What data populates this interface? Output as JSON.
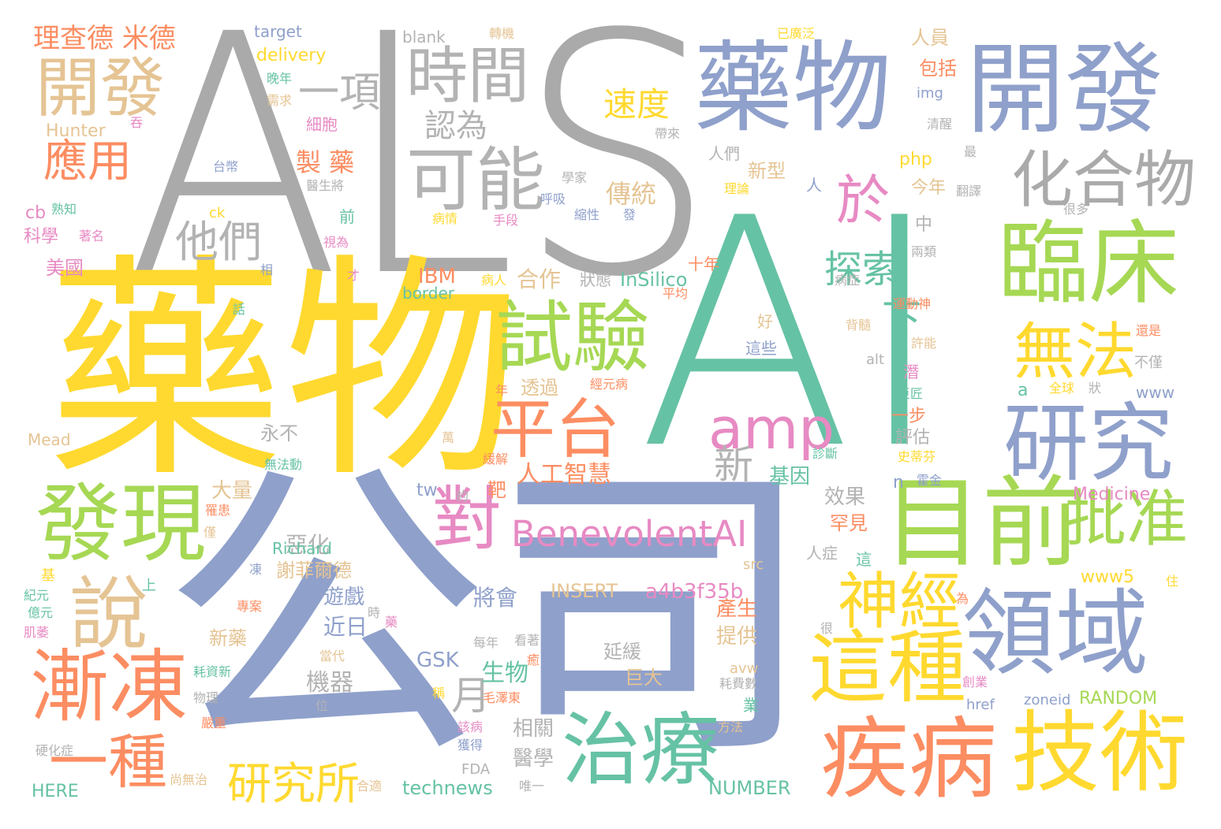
{
  "palette": {
    "gray": "#aaaaaa",
    "blue": "#8fa0cb",
    "teal": "#66c2a5",
    "yellow": "#ffd92f",
    "green": "#a6d854",
    "orange": "#fc8d62",
    "tan": "#e5c494",
    "pink": "#e78ac3",
    "lightgray": "#b3b3b3"
  },
  "words": {
    "als": "ALS",
    "ai": "AI",
    "yaowu_big": "藥物",
    "gongsi": "公司",
    "yaowu_top": "藥物",
    "kaifa_top": "開發",
    "linchuang": "臨床",
    "mubian": "目前",
    "lingyu": "領域",
    "jishu": "技術",
    "jibing": "疾病",
    "zhiliao": "治療",
    "yanjiu": "研究",
    "huahewu": "化合物",
    "shiyan": "試驗",
    "pingtai": "平台",
    "faxian": "發現",
    "jiandong": "漸凍",
    "shuo": "說",
    "kaifa_left": "開發",
    "shijian": "時間",
    "keneng": "可能",
    "zhezhong": "這種",
    "shenjing": "神經",
    "wufa": "無法",
    "pizhun": "批准",
    "dui": "對",
    "amp": "amp",
    "benevolent": "BenevolentAI",
    "yizhong": "一種",
    "yanjiusuo": "研究所",
    "yu": "於",
    "tansuo": "探索",
    "xia": "下",
    "yixiang": "一項",
    "renwei": "認為",
    "tamen": "他們",
    "yingyong": "應用",
    "richard_mead": "理查德 米德",
    "sudu": "速度",
    "xin": "新",
    "yue": "月",
    "zhiyao": "製 藥",
    "chuantong": "傳統",
    "rengong": "人工智慧",
    "insilico": "InSilico",
    "hezuo": "合作",
    "ibm": "IBM",
    "jiyin": "基因",
    "jiqi": "機器",
    "shengwu": "生物",
    "xiangguan": "相關",
    "yixue": "醫學",
    "gsk": "GSK",
    "jinri": "近日",
    "youxi": "遊戲",
    "jianghui": "將會",
    "xieleide": "謝菲爾德",
    "ehua": "惡化",
    "daliang": "大量",
    "yongbu": "永不",
    "touguo": "透過",
    "ba": "靶",
    "xinyao": "新藥",
    "a4b3": "a4b3f35b",
    "insert": "INSERT",
    "yanhuan": "延緩",
    "juda": "巨大",
    "chansheng": "產生",
    "tigong": "提供",
    "medicine": "Medicine",
    "www5": "www5",
    "xiaoguo": "效果",
    "hanjian": "罕見",
    "number": "NUMBER",
    "technews": "technews",
    "random": "RANDOM",
    "delivery": "delivery",
    "target": "target",
    "blank": "blank",
    "hunter": "Hunter",
    "php": "php",
    "jinnian": "今年",
    "xinxing": "新型",
    "renmen": "人們",
    "renyuan": "人員",
    "baokuo": "包括",
    "meiguo": "美國",
    "kexue": "科學",
    "cb": "cb",
    "border": "border",
    "richard": "Richard",
    "mead": "Mead",
    "here": "HERE",
    "tw": "tw",
    "yibu": "一步",
    "pinggu": "評估",
    "www": "www",
    "a": "a",
    "alt": "alt",
    "img": "img",
    "zoneid": "zoneid",
    "href": "href",
    "avw": "avw",
    "fda": "FDA",
    "src": "src",
    "n": "n",
    "ck": "ck",
    "zhuangtai": "狀態",
    "shinian": "十年",
    "hao": "好",
    "zhexie": "這些",
    "qian": "前",
    "ren": "人",
    "zhong": "中",
    "yuanlai": "已廣泛",
    "zhuanji": "轉機",
    "wannian": "晚年",
    "xuqiu": "需求",
    "xibao": "細胞",
    "taiyin": "台幣",
    "yishengjiang": "醫生將",
    "shuzhi": "熟知",
    "zhuming": "著名",
    "shiwei": "視為",
    "cai": "才",
    "xiang": "相",
    "hua": "話",
    "jiyuan": "紀元",
    "jiqiu": "基",
    "shang": "上",
    "dong": "凍",
    "zhuanan": "專案",
    "shi": "時",
    "huan": "藥",
    "jirou": "肌萎",
    "dangdai": "當代",
    "haozi": "耗資新",
    "wuli": "物理",
    "yanzhong": "嚴重",
    "wei": "位",
    "zhidao": "直到",
    "yinghua": "硬化症",
    "shangwu": "尚無治",
    "heshi": "合適",
    "weiyi": "唯一",
    "huode": "獲得",
    "gaibing": "該病",
    "cheng": "稱",
    "maozedong": "毛澤東",
    "kanzhe": "看著",
    "meinian": "每年",
    "fang": "癒",
    "haofei": "耗費數",
    "ye": "業",
    "fangfa": "方法",
    "huoqin": "霍金",
    "shidifen": "史蒂芬",
    "zhenduan": "診斷",
    "jujiang": "巨匠",
    "qian2": "潛",
    "jinneng": "許能",
    "beisui": "背髓",
    "yundong": "運動神",
    "bingzheng": "病症",
    "liangjia": "兩類",
    "pingjun": "平均",
    "quanqiu": "全球",
    "zhuang": "狀",
    "bujin": "不僅",
    "haishi": "還是",
    "henduo": "很多",
    "fanyi": "翻譯",
    "qingxing": "清醒",
    "zui": "最",
    "hen": "很",
    "wei2": "為",
    "zhu": "住",
    "xin2": "僅",
    "tuo": "吞",
    "daishou": "帶來",
    "xuejia": "學家",
    "huxi": "呼吸",
    "suoxing": "縮性",
    "fa": "發",
    "bingqing": "病情",
    "shouduan": "手段",
    "lilun": "理論",
    "bingren": "病人",
    "zhengyuan": "經元病",
    "huanjie": "緩解",
    "wan": "萬",
    "wufadong": "無法動",
    "yue2": "約",
    "nian": "年",
    "renzheng": "人症",
    "zhe": "這",
    "yi": "億元",
    "chuang": "創業",
    "bingli": "罹患",
    "jin": "僅"
  }
}
